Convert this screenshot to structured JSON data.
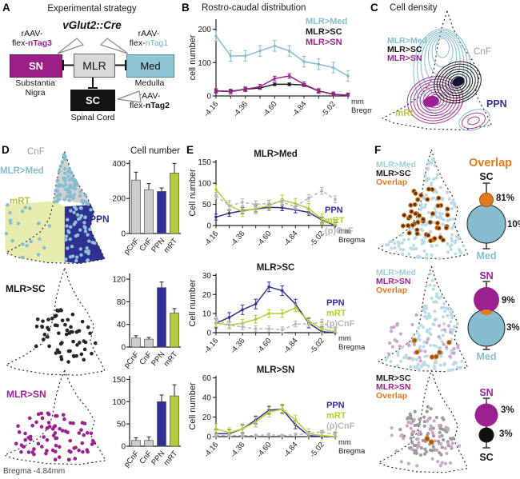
{
  "colors": {
    "med": "#85bccf",
    "med_light": "#b9dbe6",
    "med_on_ppn": "#8fc3d4",
    "sc": "#1a1a1a",
    "sn": "#9c2190",
    "sn_light": "#cfa3cb",
    "ppn": "#2e3192",
    "mrt": "#b5cc34",
    "mrt_region": "#e7ebad",
    "cnf_region": "#d2d2d2",
    "bar_gray": "#cccccc",
    "line_gray": "#b5b5b5",
    "overlap": "#e07a1f",
    "overlap_dark": "#8a5a20",
    "gray_dots": "#9a9a9a",
    "axis": "#222222"
  },
  "panel_letters": {
    "a": "A",
    "b": "B",
    "c": "C",
    "d": "D",
    "e": "E",
    "f": "F"
  },
  "panelA": {
    "title": "Experimental strategy",
    "subtitle": "vGlut2::Cre",
    "boxes": {
      "sn": "SN",
      "mlr": "MLR",
      "med": "Med",
      "sc": "SC"
    },
    "captions": {
      "sn": "Substantia Nigra",
      "med": "Medulla",
      "sc": "Spinal Cord"
    },
    "virus_sn": {
      "line1": "rAAV-",
      "prefix": "flex-",
      "tag": "nTag3"
    },
    "virus_med": {
      "line1": "rAAV-",
      "prefix": "flex-",
      "tag": "nTag1"
    },
    "virus_sc": {
      "line1": "rAAV-",
      "prefix": "flex-",
      "tag": "nTag2"
    }
  },
  "panelC": {
    "title": "Cell density",
    "legend": [
      {
        "label": "MLR>Med"
      },
      {
        "label": "MLR>SC"
      },
      {
        "label": "MLR>SN"
      }
    ],
    "labels": {
      "cnf": "CnF",
      "ppn": "PPN",
      "mrt": "mRt"
    }
  },
  "panelD": {
    "scatter1_labels": {
      "cnf": "CnF",
      "proj": "MLR>Med",
      "mrt": "mRT",
      "ppn": "PPN"
    },
    "scatter2_label": "MLR>SC",
    "scatter3_label": "MLR>SN",
    "bregma": "Bregma -4.84mm"
  },
  "panelF": {
    "overlap_title": "Overlap",
    "rows": [
      {
        "legend": [
          {
            "label": "MLR>Med"
          },
          {
            "label": "MLR>SC"
          },
          {
            "label": "Overlap"
          }
        ],
        "top_label": "SC",
        "pct_top": "81%",
        "pct_bottom": "10%",
        "bottom_label": "Med"
      },
      {
        "legend": [
          {
            "label": "MLR>Med"
          },
          {
            "label": "MLR>SN"
          },
          {
            "label": "Overlap"
          }
        ],
        "top_label": "SN",
        "pct_top": "9%",
        "pct_bottom": "3%",
        "bottom_label": "Med"
      },
      {
        "legend": [
          {
            "label": "MLR>SC"
          },
          {
            "label": "MLR>SN"
          },
          {
            "label": "Overlap"
          }
        ],
        "top_label": "SN",
        "pct_top": "3%",
        "pct_bottom": "3%",
        "bottom_label": "SC"
      }
    ]
  },
  "chart_data": [
    {
      "id": "B",
      "type": "line",
      "title": "Rostro-caudal distribution",
      "ylabel": "cell number",
      "ylim": [
        0,
        230
      ],
      "yticks": [
        0,
        100,
        200
      ],
      "n_points": 10,
      "x_tick_labels": [
        "-4.16",
        "-4.36",
        "-4.60",
        "-4.84",
        "-5.02"
      ],
      "label_indices": [
        0,
        2,
        4,
        6,
        8
      ],
      "x_axis_suffix": [
        "mm",
        "Bregma"
      ],
      "series": [
        {
          "name": "MLR>Med",
          "color": "med",
          "err": 16,
          "values": [
            180,
            120,
            120,
            135,
            150,
            135,
            103,
            95,
            85,
            60
          ]
        },
        {
          "name": "MLR>SC",
          "color": "sc",
          "err": 4,
          "values": [
            15,
            14,
            20,
            24,
            35,
            35,
            33,
            15,
            5,
            2
          ]
        },
        {
          "name": "MLR>SN",
          "color": "sn",
          "err": 7,
          "values": [
            15,
            13,
            20,
            28,
            52,
            60,
            35,
            15,
            5,
            2
          ]
        }
      ]
    },
    {
      "id": "E_med",
      "type": "line",
      "title": "MLR>Med",
      "ylabel": "Cell number",
      "ylim": [
        0,
        155
      ],
      "yticks": [
        0,
        50,
        100,
        150
      ],
      "n_points": 10,
      "x_tick_labels": [
        "-4.16",
        "-4.36",
        "-4.60",
        "-4.84",
        "-5.02"
      ],
      "label_indices": [
        0,
        2,
        4,
        6,
        8
      ],
      "x_axis_suffix": [
        "mm",
        "Bregma"
      ],
      "series": [
        {
          "name": "PPN",
          "color": "ppn",
          "err": 7,
          "values": [
            20,
            29,
            35,
            39,
            43,
            42,
            37,
            31,
            13,
            0
          ]
        },
        {
          "name": "mRT",
          "color": "mrt",
          "err": 12,
          "values": [
            85,
            47,
            33,
            40,
            47,
            60,
            52,
            40,
            15,
            2
          ]
        },
        {
          "name": "(p)CnF",
          "color": "line_gray",
          "err": 8,
          "dashed": true,
          "values": [
            70,
            47,
            55,
            50,
            52,
            55,
            45,
            65,
            82,
            62
          ]
        }
      ]
    },
    {
      "id": "E_sc",
      "type": "line",
      "title": "MLR>SC",
      "ylabel": "Cell number",
      "ylim": [
        0,
        31
      ],
      "yticks": [
        0,
        10,
        20,
        30
      ],
      "n_points": 10,
      "x_tick_labels": [
        "-4.16",
        "-4.36",
        "-4.60",
        "-4.84",
        "-5.02"
      ],
      "label_indices": [
        0,
        2,
        4,
        6,
        8
      ],
      "x_axis_suffix": [
        "mm",
        "Bregma"
      ],
      "series": [
        {
          "name": "PPN",
          "color": "ppn",
          "err": 2.5,
          "values": [
            5,
            8,
            12,
            15,
            24,
            22,
            15,
            5,
            0.5,
            0
          ]
        },
        {
          "name": "mRT",
          "color": "mrt",
          "err": 2,
          "values": [
            5,
            4,
            5,
            7,
            10,
            10,
            13,
            6,
            2,
            0.5
          ]
        },
        {
          "name": "(p)CnF",
          "color": "line_gray",
          "err": 1.5,
          "dashed": true,
          "values": [
            7,
            4,
            3,
            2,
            2,
            1.5,
            4.5,
            4.5,
            5.5,
            1.5
          ]
        }
      ]
    },
    {
      "id": "E_sn",
      "type": "line",
      "title": "MLR>SN",
      "ylabel": "Cell number",
      "ylim": [
        0,
        62
      ],
      "yticks": [
        0,
        20,
        40,
        60
      ],
      "n_points": 10,
      "x_tick_labels": [
        "-4.16",
        "-4.36",
        "-4.60",
        "-4.84",
        "-5.02"
      ],
      "label_indices": [
        0,
        2,
        4,
        6,
        8
      ],
      "x_axis_suffix": [
        "mm",
        "Bregma"
      ],
      "series": [
        {
          "name": "PPN",
          "color": "ppn",
          "err": 4,
          "values": [
            3,
            3,
            8,
            17,
            27,
            28,
            12,
            1,
            0,
            0
          ]
        },
        {
          "name": "mRT",
          "color": "mrt",
          "err": 5,
          "values": [
            8,
            4,
            8,
            15,
            25,
            28,
            17,
            3,
            1,
            0
          ]
        },
        {
          "name": "(p)CnF",
          "color": "line_gray",
          "err": 1.5,
          "dashed": true,
          "values": [
            1,
            1,
            1,
            1,
            2,
            1,
            2,
            3,
            5,
            2
          ]
        }
      ]
    },
    {
      "id": "D_med_bars",
      "type": "bar",
      "title": "Cell number",
      "categories": [
        "pCnF",
        "CnF",
        "PPN",
        "mRT"
      ],
      "values": [
        305,
        250,
        240,
        345
      ],
      "err": [
        45,
        35,
        20,
        55
      ],
      "bar_colors": [
        "bar_gray",
        "bar_gray",
        "ppn",
        "mrt"
      ],
      "ylim": [
        0,
        420
      ],
      "yticks": [
        0,
        200,
        400
      ]
    },
    {
      "id": "D_sc_bars",
      "type": "bar",
      "title": "",
      "categories": [
        "pCnF",
        "CnF",
        "PPN",
        "mRT"
      ],
      "values": [
        16,
        14,
        105,
        60
      ],
      "err": [
        4,
        3,
        10,
        8
      ],
      "bar_colors": [
        "bar_gray",
        "bar_gray",
        "ppn",
        "mrt"
      ],
      "ylim": [
        0,
        130
      ],
      "yticks": [
        0,
        40,
        80,
        120
      ]
    },
    {
      "id": "D_sn_bars",
      "type": "bar",
      "title": "",
      "categories": [
        "pCnF",
        "CnF",
        "PPN",
        "mRT"
      ],
      "values": [
        13,
        13,
        100,
        113
      ],
      "err": [
        6,
        8,
        15,
        25
      ],
      "bar_colors": [
        "bar_gray",
        "bar_gray",
        "ppn",
        "mrt"
      ],
      "ylim": [
        0,
        158
      ],
      "yticks": [
        0,
        50,
        100,
        150
      ]
    }
  ]
}
